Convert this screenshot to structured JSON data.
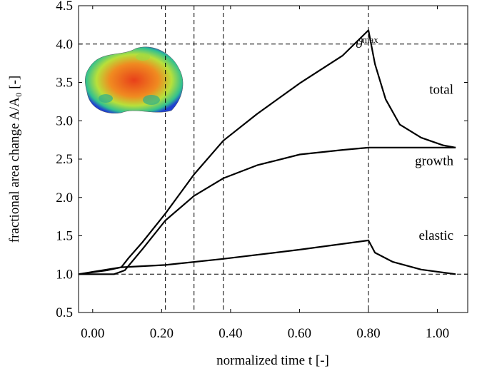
{
  "chart_data": {
    "type": "line",
    "x_label": "normalized time t [-]",
    "y_label": "fractional area change A/A₀ [-]",
    "xlim": [
      -0.041,
      1.088
    ],
    "ylim": [
      0.5,
      4.5
    ],
    "xticks": [
      {
        "value": 0,
        "label": "0.00"
      },
      {
        "value": 0.2,
        "label": "0.20"
      },
      {
        "value": 0.4,
        "label": "0.40"
      },
      {
        "value": 0.6,
        "label": "0.60"
      },
      {
        "value": 0.8,
        "label": "0.80"
      },
      {
        "value": 1,
        "label": "1.00"
      }
    ],
    "yticks": [
      0.5,
      {
        "value": 1,
        "label": "1.0"
      },
      1.5,
      {
        "value": 2,
        "label": "2.0"
      },
      2.5,
      {
        "value": 3,
        "label": "3.0"
      },
      3.5,
      {
        "value": 4,
        "label": "4.0"
      },
      4.5
    ],
    "vlines": [
      0.211,
      0.294,
      0.379,
      0.8
    ],
    "hlines": [
      1.0,
      4.0
    ],
    "hline_label": {
      "symbol": "ϑ",
      "sup": "max"
    },
    "color": "#000000",
    "series": [
      {
        "name": "total",
        "x": [
          -0.041,
          0.041,
          0.083,
          0.104,
          0.145,
          0.211,
          0.294,
          0.379,
          0.477,
          0.601,
          0.725,
          0.8,
          0.819,
          0.85,
          0.891,
          0.953,
          1.016,
          1.053
        ],
        "values": [
          1.0,
          1.05,
          1.09,
          1.21,
          1.42,
          1.79,
          2.3,
          2.74,
          3.09,
          3.49,
          3.85,
          4.18,
          3.74,
          3.28,
          2.95,
          2.78,
          2.68,
          2.65
        ]
      },
      {
        "name": "growth",
        "x": [
          -0.041,
          0.062,
          0.093,
          0.145,
          0.211,
          0.294,
          0.379,
          0.477,
          0.601,
          0.725,
          0.8,
          0.891,
          1.053
        ],
        "values": [
          1.0,
          1.0,
          1.05,
          1.33,
          1.7,
          2.02,
          2.25,
          2.42,
          2.56,
          2.62,
          2.65,
          2.65,
          2.65
        ]
      },
      {
        "name": "elastic",
        "x": [
          -0.041,
          0.083,
          0.211,
          0.379,
          0.601,
          0.8,
          0.819,
          0.871,
          0.953,
          1.053
        ],
        "values": [
          1.0,
          1.09,
          1.12,
          1.2,
          1.32,
          1.44,
          1.28,
          1.16,
          1.06,
          1.0
        ]
      }
    ]
  }
}
